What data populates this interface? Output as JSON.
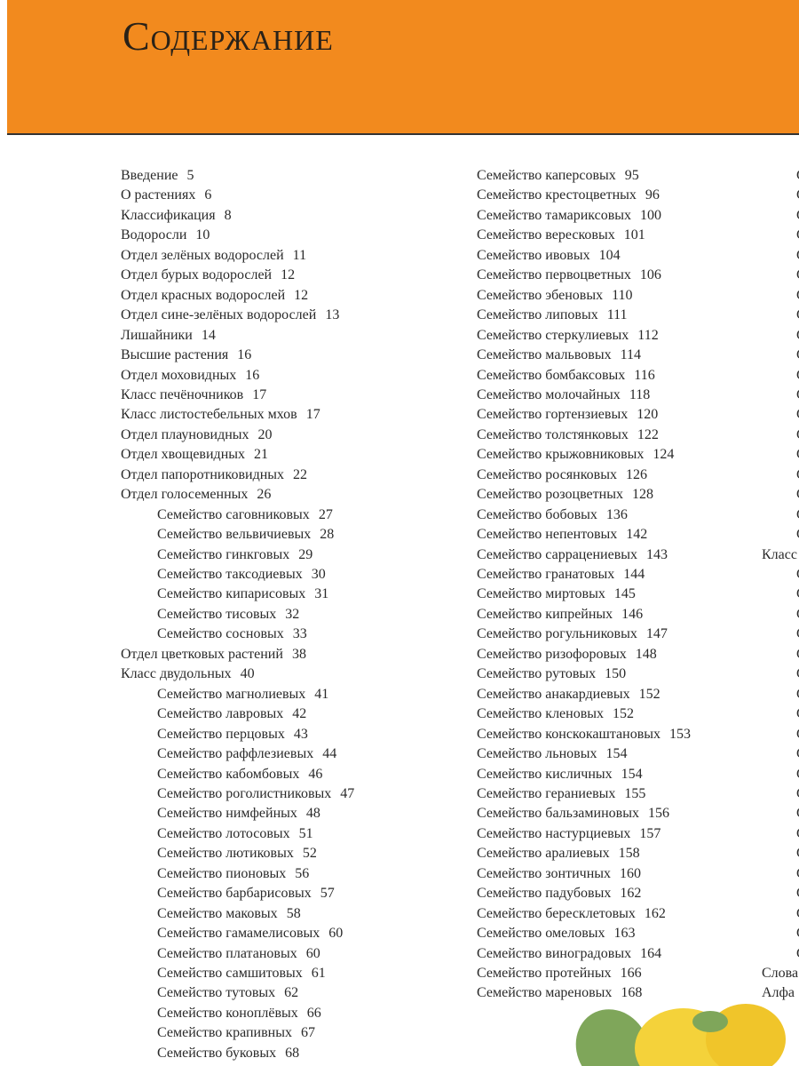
{
  "header": {
    "title": "Содержание"
  },
  "col1": [
    {
      "text": "Введение",
      "page": 5
    },
    {
      "text": "О растениях",
      "page": 6
    },
    {
      "text": "Классификация",
      "page": 8
    },
    {
      "text": "Водоросли",
      "page": 10
    },
    {
      "text": "Отдел зелёных водорослей",
      "page": 11
    },
    {
      "text": "Отдел бурых водорослей",
      "page": 12
    },
    {
      "text": "Отдел красных водорослей",
      "page": 12
    },
    {
      "text": "Отдел сине-зелёных водорослей",
      "page": 13
    },
    {
      "text": "Лишайники",
      "page": 14
    },
    {
      "text": "Высшие растения",
      "page": 16
    },
    {
      "text": "Отдел моховидных",
      "page": 16
    },
    {
      "text": "Класс печёночников",
      "page": 17
    },
    {
      "text": "Класс листостебельных мхов",
      "page": 17
    },
    {
      "text": "Отдел плауновидных",
      "page": 20
    },
    {
      "text": "Отдел хвощевидных",
      "page": 21
    },
    {
      "text": "Отдел папоротниковидных",
      "page": 22
    },
    {
      "text": "Отдел голосеменных",
      "page": 26
    },
    {
      "text": "Семейство саговниковых",
      "page": 27,
      "indent": true
    },
    {
      "text": "Семейство вельвичиевых",
      "page": 28,
      "indent": true
    },
    {
      "text": "Семейство гинкговых",
      "page": 29,
      "indent": true
    },
    {
      "text": "Семейство таксодиевых",
      "page": 30,
      "indent": true
    },
    {
      "text": "Семейство кипарисовых",
      "page": 31,
      "indent": true
    },
    {
      "text": "Семейство тисовых",
      "page": 32,
      "indent": true
    },
    {
      "text": "Семейство сосновых",
      "page": 33,
      "indent": true
    },
    {
      "text": "Отдел цветковых растений",
      "page": 38
    },
    {
      "text": "Класс двудольных",
      "page": 40
    },
    {
      "text": "Семейство магнолиевых",
      "page": 41,
      "indent": true
    },
    {
      "text": "Семейство лавровых",
      "page": 42,
      "indent": true
    },
    {
      "text": "Семейство перцовых",
      "page": 43,
      "indent": true
    },
    {
      "text": "Семейство раффлезиевых",
      "page": 44,
      "indent": true
    },
    {
      "text": "Семейство кабомбовых",
      "page": 46,
      "indent": true
    },
    {
      "text": "Семейство роголистниковых",
      "page": 47,
      "indent": true
    },
    {
      "text": "Семейство нимфейных",
      "page": 48,
      "indent": true
    },
    {
      "text": "Семейство лотосовых",
      "page": 51,
      "indent": true
    },
    {
      "text": "Семейство лютиковых",
      "page": 52,
      "indent": true
    },
    {
      "text": "Семейство пионовых",
      "page": 56,
      "indent": true
    },
    {
      "text": "Семейство барбарисовых",
      "page": 57,
      "indent": true
    },
    {
      "text": "Семейство маковых",
      "page": 58,
      "indent": true
    },
    {
      "text": "Семейство гамамелисовых",
      "page": 60,
      "indent": true
    },
    {
      "text": "Семейство платановых",
      "page": 60,
      "indent": true
    },
    {
      "text": "Семейство самшитовых",
      "page": 61,
      "indent": true
    },
    {
      "text": "Семейство тутовых",
      "page": 62,
      "indent": true
    },
    {
      "text": "Семейство коноплёвых",
      "page": 66,
      "indent": true
    },
    {
      "text": "Семейство крапивных",
      "page": 67,
      "indent": true
    },
    {
      "text": "Семейство буковых",
      "page": 68,
      "indent": true
    }
  ],
  "col2": [
    {
      "text": "Семейство каперсовых",
      "page": 95
    },
    {
      "text": "Семейство крестоцветных",
      "page": 96
    },
    {
      "text": "Семейство тамариксовых",
      "page": 100
    },
    {
      "text": "Семейство вересковых",
      "page": 101
    },
    {
      "text": "Семейство ивовых",
      "page": 104
    },
    {
      "text": "Семейство первоцветных",
      "page": 106
    },
    {
      "text": "Семейство эбеновых",
      "page": 110
    },
    {
      "text": "Семейство липовых",
      "page": 111
    },
    {
      "text": "Семейство стеркулиевых",
      "page": 112
    },
    {
      "text": "Семейство мальвовых",
      "page": 114
    },
    {
      "text": "Семейство бомбаксовых",
      "page": 116
    },
    {
      "text": "Семейство молочайных",
      "page": 118
    },
    {
      "text": "Семейство гортензиевых",
      "page": 120
    },
    {
      "text": "Семейство толстянковых",
      "page": 122
    },
    {
      "text": "Семейство крыжовниковых",
      "page": 124
    },
    {
      "text": "Семейство росянковых",
      "page": 126
    },
    {
      "text": "Семейство розоцветных",
      "page": 128
    },
    {
      "text": "Семейство бобовых",
      "page": 136
    },
    {
      "text": "Семейство непентовых",
      "page": 142
    },
    {
      "text": "Семейство саррацениевых",
      "page": 143
    },
    {
      "text": "Семейство гранатовых",
      "page": 144
    },
    {
      "text": "Семейство миртовых",
      "page": 145
    },
    {
      "text": "Семейство кипрейных",
      "page": 146
    },
    {
      "text": "Семейство рогульниковых",
      "page": 147
    },
    {
      "text": "Семейство ризофоровых",
      "page": 148
    },
    {
      "text": "Семейство рутовых",
      "page": 150
    },
    {
      "text": "Семейство анакардиевых",
      "page": 152
    },
    {
      "text": "Семейство кленовых",
      "page": 152
    },
    {
      "text": "Семейство конскокаштановых",
      "page": 153
    },
    {
      "text": "Семейство льновых",
      "page": 154
    },
    {
      "text": "Семейство кисличных",
      "page": 154
    },
    {
      "text": "Семейство гераниевых",
      "page": 155
    },
    {
      "text": "Семейство бальзаминовых",
      "page": 156
    },
    {
      "text": "Семейство настурциевых",
      "page": 157
    },
    {
      "text": "Семейство аралиевых",
      "page": 158
    },
    {
      "text": "Семейство зонтичных",
      "page": 160
    },
    {
      "text": "Семейство падубовых",
      "page": 162
    },
    {
      "text": "Семейство бересклетовых",
      "page": 162
    },
    {
      "text": "Семейство омеловых",
      "page": 163
    },
    {
      "text": "Семейство виноградовых",
      "page": 164
    },
    {
      "text": "Семейство протейных",
      "page": 166
    },
    {
      "text": "Семейство мареновых",
      "page": 168
    }
  ],
  "col3": [
    {
      "text": "С",
      "indent": true
    },
    {
      "text": "С",
      "indent": true
    },
    {
      "text": "С",
      "indent": true
    },
    {
      "text": "С",
      "indent": true
    },
    {
      "text": "С",
      "indent": true
    },
    {
      "text": "С",
      "indent": true
    },
    {
      "text": "С",
      "indent": true
    },
    {
      "text": "С",
      "indent": true
    },
    {
      "text": "С",
      "indent": true
    },
    {
      "text": "С",
      "indent": true
    },
    {
      "text": "С",
      "indent": true
    },
    {
      "text": "С",
      "indent": true
    },
    {
      "text": "С",
      "indent": true
    },
    {
      "text": "С",
      "indent": true
    },
    {
      "text": "С",
      "indent": true
    },
    {
      "text": "С",
      "indent": true
    },
    {
      "text": "С",
      "indent": true
    },
    {
      "text": "С",
      "indent": true
    },
    {
      "text": "С",
      "indent": true
    },
    {
      "text": "Класс"
    },
    {
      "text": "С",
      "indent": true
    },
    {
      "text": "С",
      "indent": true
    },
    {
      "text": "С",
      "indent": true
    },
    {
      "text": "С",
      "indent": true
    },
    {
      "text": "С",
      "indent": true
    },
    {
      "text": "С",
      "indent": true
    },
    {
      "text": "С",
      "indent": true
    },
    {
      "text": "С",
      "indent": true
    },
    {
      "text": "С",
      "indent": true
    },
    {
      "text": "С",
      "indent": true
    },
    {
      "text": "С",
      "indent": true
    },
    {
      "text": "С",
      "indent": true
    },
    {
      "text": "С",
      "indent": true
    },
    {
      "text": "С",
      "indent": true
    },
    {
      "text": "С",
      "indent": true
    },
    {
      "text": "С",
      "indent": true
    },
    {
      "text": "С",
      "indent": true
    },
    {
      "text": "С",
      "indent": true
    },
    {
      "text": "С",
      "indent": true
    },
    {
      "text": "С",
      "indent": true
    },
    {
      "text": "Слова"
    },
    {
      "text": "Алфа"
    }
  ]
}
